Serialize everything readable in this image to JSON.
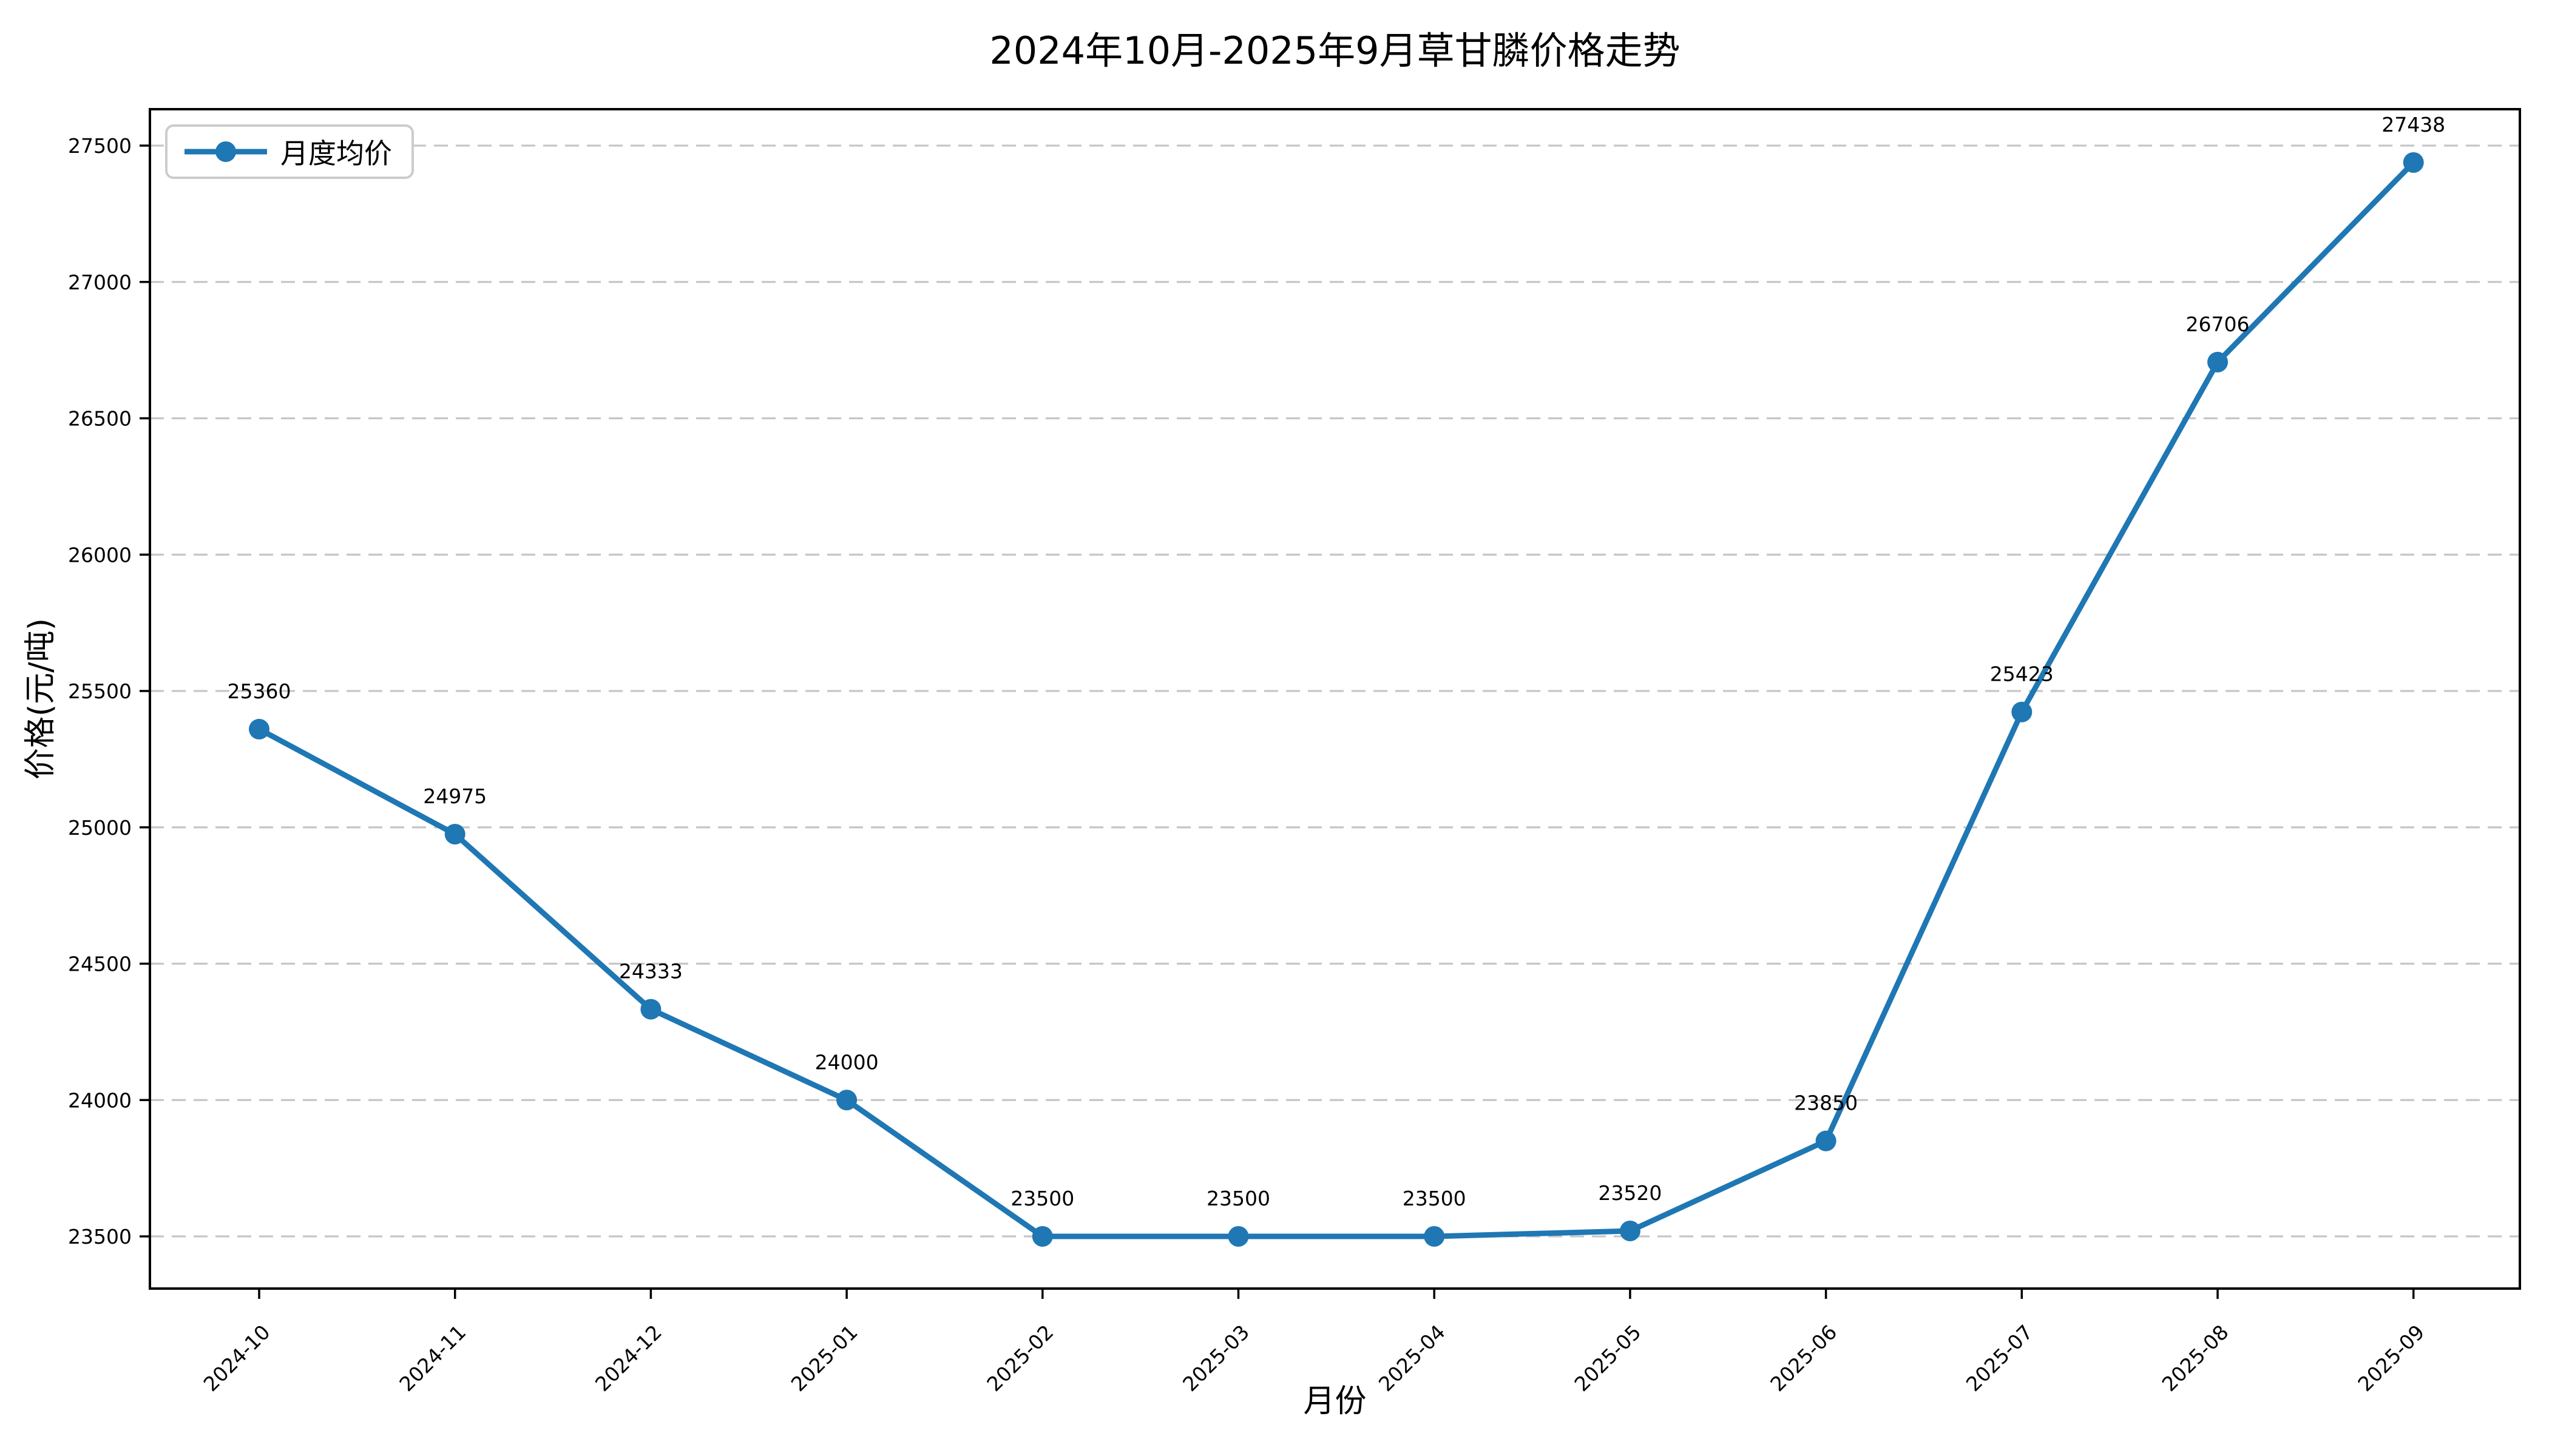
{
  "figure": {
    "background": "#ffffff"
  },
  "chart_data": {
    "type": "line",
    "title": "2024年10月-2025年9月草甘膦价格走势",
    "xlabel": "月份",
    "ylabel": "价格(元/吨)",
    "grid": "horizontal-dashed",
    "legend": {
      "position": "upper-left",
      "entries": [
        "月度均价"
      ]
    },
    "categories": [
      "2024-10",
      "2024-11",
      "2024-12",
      "2025-01",
      "2025-02",
      "2025-03",
      "2025-04",
      "2025-05",
      "2025-06",
      "2025-07",
      "2025-08",
      "2025-09"
    ],
    "series": [
      {
        "name": "月度均价",
        "marker": "circle",
        "values": [
          25360,
          24975,
          24333,
          24000,
          23500,
          23500,
          23500,
          23520,
          23850,
          25423,
          26706,
          27438
        ]
      }
    ],
    "point_labels": [
      "25360",
      "24975",
      "24333",
      "24000",
      "23500",
      "23500",
      "23500",
      "23520",
      "23850",
      "25423",
      "26706",
      "27438"
    ],
    "yticks": [
      23500,
      24000,
      24500,
      25000,
      25500,
      26000,
      26500,
      27000,
      27500
    ],
    "ylim": [
      23300,
      27650
    ],
    "x_tick_rotation_deg": 45,
    "colors": {
      "line": "#1f77b4",
      "marker": "#1f77b4",
      "grid": "#c6c6c6",
      "spine": "#000000",
      "text": "#000000",
      "legend_border": "#cccccc"
    }
  }
}
